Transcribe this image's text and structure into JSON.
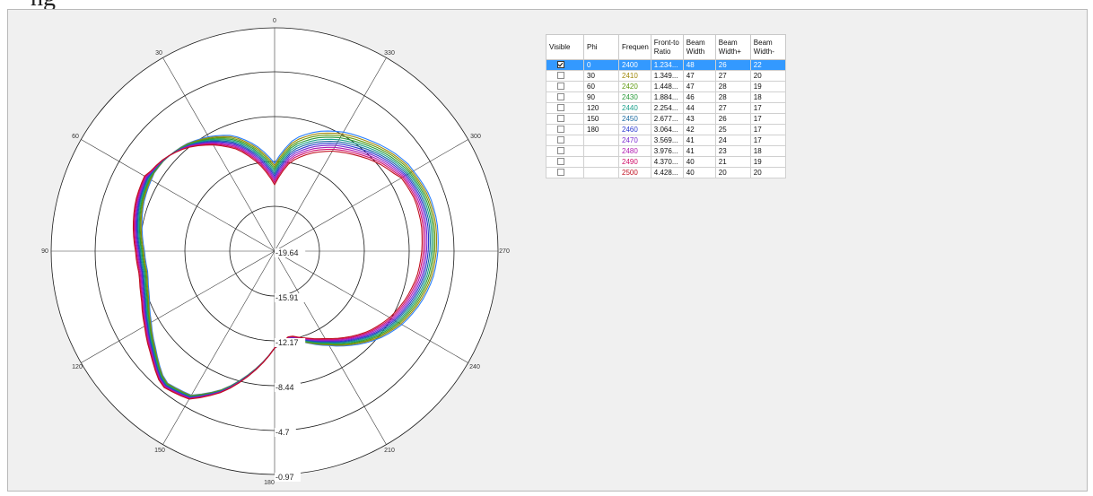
{
  "top_fragment": "ng",
  "polar": {
    "angle_labels": [
      "0",
      "30",
      "330",
      "60",
      "300",
      "90",
      "270",
      "120",
      "240",
      "150",
      "210",
      "180"
    ],
    "ring_labels": [
      "-19.64",
      "-15.91",
      "-12.17",
      "-8.44",
      "-4.7",
      "-0.97"
    ]
  },
  "table": {
    "headers": [
      "Visible",
      "Phi",
      "Frequen",
      "Front-to Ratio",
      "Beam Width",
      "Beam Width+",
      "Beam Width-"
    ],
    "rows": [
      {
        "visible": true,
        "phi": "0",
        "freq": "2400",
        "ftb": "1.234...",
        "bw": "48",
        "bwp": "26",
        "bwm": "22",
        "color": "#2a7fff",
        "selected": true
      },
      {
        "visible": false,
        "phi": "30",
        "freq": "2410",
        "ftb": "1.349...",
        "bw": "47",
        "bwp": "27",
        "bwm": "20",
        "color": "#a0880a"
      },
      {
        "visible": false,
        "phi": "60",
        "freq": "2420",
        "ftb": "1.448...",
        "bw": "47",
        "bwp": "28",
        "bwm": "19",
        "color": "#5f9a10"
      },
      {
        "visible": false,
        "phi": "90",
        "freq": "2430",
        "ftb": "1.884...",
        "bw": "46",
        "bwp": "28",
        "bwm": "18",
        "color": "#2a9a3a"
      },
      {
        "visible": false,
        "phi": "120",
        "freq": "2440",
        "ftb": "2.254...",
        "bw": "44",
        "bwp": "27",
        "bwm": "17",
        "color": "#1aa08a"
      },
      {
        "visible": false,
        "phi": "150",
        "freq": "2450",
        "ftb": "2.677...",
        "bw": "43",
        "bwp": "26",
        "bwm": "17",
        "color": "#1a6aa0"
      },
      {
        "visible": false,
        "phi": "180",
        "freq": "2460",
        "ftb": "3.064...",
        "bw": "42",
        "bwp": "25",
        "bwm": "17",
        "color": "#2a3ad0"
      },
      {
        "visible": false,
        "phi": "",
        "freq": "2470",
        "ftb": "3.569...",
        "bw": "41",
        "bwp": "24",
        "bwm": "17",
        "color": "#7a2ad0"
      },
      {
        "visible": false,
        "phi": "",
        "freq": "2480",
        "ftb": "3.976...",
        "bw": "41",
        "bwp": "23",
        "bwm": "18",
        "color": "#b01ab0"
      },
      {
        "visible": false,
        "phi": "",
        "freq": "2490",
        "ftb": "4.370...",
        "bw": "40",
        "bwp": "21",
        "bwm": "19",
        "color": "#d0106a"
      },
      {
        "visible": false,
        "phi": "",
        "freq": "2500",
        "ftb": "4.428...",
        "bw": "40",
        "bwp": "20",
        "bwm": "20",
        "color": "#c01020"
      }
    ]
  },
  "colors": {
    "selection": "#3399ff",
    "panel_bg": "#f0f0f0"
  }
}
